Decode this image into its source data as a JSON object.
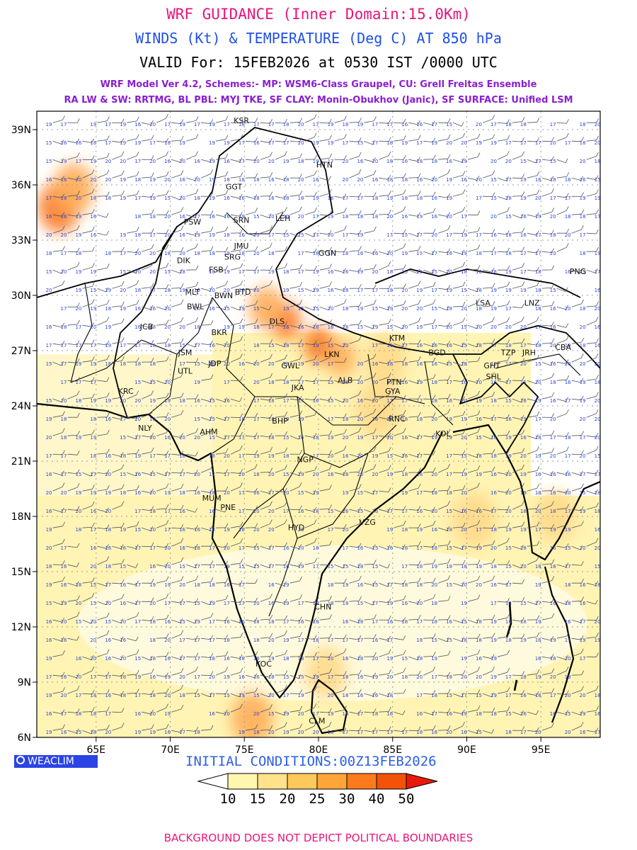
{
  "header": {
    "title": "WRF GUIDANCE (Inner Domain:15.0Km)",
    "subtitle": "WINDS (Kt) & TEMPERATURE (Deg C) AT 850 hPa",
    "valid": "VALID For: 15FEB2026 at 0530 IST /0000 UTC",
    "model_line1": "WRF Model Ver 4.2, Schemes:- MP: WSM6-Class Graupel, CU: Grell Freitas Ensemble",
    "model_line2": "RA LW & SW: RRTMG, BL PBL: MYJ TKE, SF CLAY: Monin-Obukhov (Janic), SF SURFACE: Unified LSM"
  },
  "map": {
    "lon_range": [
      61,
      99
    ],
    "lat_range": [
      6,
      40
    ],
    "lon_ticks": [
      "65E",
      "70E",
      "75E",
      "80E",
      "85E",
      "90E",
      "95E"
    ],
    "lat_ticks": [
      "39N",
      "36N",
      "33N",
      "30N",
      "27N",
      "24N",
      "21N",
      "18N",
      "15N",
      "12N",
      "9N",
      "6N"
    ],
    "grid": "dotted",
    "stations": [
      {
        "code": "KSR",
        "lon": 74.8,
        "lat": 39.5
      },
      {
        "code": "HTN",
        "lon": 80.4,
        "lat": 37.1
      },
      {
        "code": "GGT",
        "lon": 74.3,
        "lat": 35.9
      },
      {
        "code": "LEH",
        "lon": 77.6,
        "lat": 34.2
      },
      {
        "code": "PSW",
        "lon": 71.5,
        "lat": 34.0
      },
      {
        "code": "SRN",
        "lon": 74.8,
        "lat": 34.1
      },
      {
        "code": "JMU",
        "lon": 74.8,
        "lat": 32.7
      },
      {
        "code": "GGN",
        "lon": 80.6,
        "lat": 32.3
      },
      {
        "code": "DIK",
        "lon": 70.9,
        "lat": 31.9
      },
      {
        "code": "SRG",
        "lon": 74.2,
        "lat": 32.1
      },
      {
        "code": "FSB",
        "lon": 73.1,
        "lat": 31.4
      },
      {
        "code": "PNG",
        "lon": 97.5,
        "lat": 31.3
      },
      {
        "code": "MLT",
        "lon": 71.5,
        "lat": 30.2
      },
      {
        "code": "BTD",
        "lon": 74.9,
        "lat": 30.2
      },
      {
        "code": "BWN",
        "lon": 73.6,
        "lat": 30.0
      },
      {
        "code": "LNZ",
        "lon": 94.4,
        "lat": 29.6
      },
      {
        "code": "LSA",
        "lon": 91.1,
        "lat": 29.6
      },
      {
        "code": "BWL",
        "lon": 71.7,
        "lat": 29.4
      },
      {
        "code": "DLS",
        "lon": 77.2,
        "lat": 28.6
      },
      {
        "code": "JCB",
        "lon": 68.4,
        "lat": 28.3
      },
      {
        "code": "BKR",
        "lon": 73.3,
        "lat": 28.0
      },
      {
        "code": "KTM",
        "lon": 85.3,
        "lat": 27.7
      },
      {
        "code": "CBA",
        "lon": 96.5,
        "lat": 27.2
      },
      {
        "code": "BGD",
        "lon": 88.0,
        "lat": 26.9
      },
      {
        "code": "TZP",
        "lon": 92.8,
        "lat": 26.9
      },
      {
        "code": "JRH",
        "lon": 94.2,
        "lat": 26.9
      },
      {
        "code": "JSM",
        "lon": 71.0,
        "lat": 26.9
      },
      {
        "code": "LKN",
        "lon": 80.9,
        "lat": 26.8
      },
      {
        "code": "GHT",
        "lon": 91.7,
        "lat": 26.2
      },
      {
        "code": "JDP",
        "lon": 73.0,
        "lat": 26.3
      },
      {
        "code": "GWL",
        "lon": 78.1,
        "lat": 26.2
      },
      {
        "code": "UTL",
        "lon": 71.0,
        "lat": 25.9
      },
      {
        "code": "SHL",
        "lon": 91.8,
        "lat": 25.6
      },
      {
        "code": "PTN",
        "lon": 85.1,
        "lat": 25.3
      },
      {
        "code": "ALB",
        "lon": 81.8,
        "lat": 25.4
      },
      {
        "code": "JKA",
        "lon": 78.6,
        "lat": 25.0
      },
      {
        "code": "GYA",
        "lon": 85.0,
        "lat": 24.8
      },
      {
        "code": "KRC",
        "lon": 67.0,
        "lat": 24.8
      },
      {
        "code": "RNC",
        "lon": 85.3,
        "lat": 23.3
      },
      {
        "code": "BHP",
        "lon": 77.4,
        "lat": 23.2
      },
      {
        "code": "NLY",
        "lon": 68.3,
        "lat": 22.8
      },
      {
        "code": "AHM",
        "lon": 72.6,
        "lat": 22.6
      },
      {
        "code": "KOL",
        "lon": 88.4,
        "lat": 22.5
      },
      {
        "code": "NGP",
        "lon": 79.1,
        "lat": 21.1
      },
      {
        "code": "MUM",
        "lon": 72.8,
        "lat": 19.0
      },
      {
        "code": "PNE",
        "lon": 73.9,
        "lat": 18.5
      },
      {
        "code": "HYD",
        "lon": 78.5,
        "lat": 17.4
      },
      {
        "code": "VZG",
        "lon": 83.3,
        "lat": 17.7
      },
      {
        "code": "CHN",
        "lon": 80.3,
        "lat": 13.1
      },
      {
        "code": "KOC",
        "lon": 76.3,
        "lat": 10.0
      },
      {
        "code": "CLM",
        "lon": 79.9,
        "lat": 6.9
      }
    ],
    "temp_regions": [
      {
        "lon": 62.5,
        "lat": 34.8,
        "level": 30,
        "r": 1.4
      },
      {
        "lon": 63.5,
        "lat": 35.8,
        "level": 25,
        "r": 1.4
      },
      {
        "lon": 77.8,
        "lat": 28.6,
        "level": 30,
        "r": 1.0
      },
      {
        "lon": 80.0,
        "lat": 27.3,
        "level": 30,
        "r": 1.0
      },
      {
        "lon": 81.5,
        "lat": 26.6,
        "level": 25,
        "r": 1.0
      },
      {
        "lon": 76.5,
        "lat": 29.3,
        "level": 25,
        "r": 1.2
      },
      {
        "lon": 84.5,
        "lat": 26.5,
        "level": 20,
        "r": 1.4
      },
      {
        "lon": 84.0,
        "lat": 23.8,
        "level": 20,
        "r": 1.5
      },
      {
        "lon": 75.5,
        "lat": 7.0,
        "level": 25,
        "r": 1.4
      },
      {
        "lon": 90.5,
        "lat": 17.8,
        "level": 20,
        "r": 1.5
      },
      {
        "lon": 96.0,
        "lat": 18.0,
        "level": 20,
        "r": 1.4
      },
      {
        "lon": 80.5,
        "lat": 9.5,
        "level": 20,
        "r": 1.4
      }
    ],
    "wind_speed_numbers": [
      "15",
      "16",
      "17",
      "18",
      "19",
      "20"
    ]
  },
  "footer": {
    "badge": "WEACLIM",
    "initial": "INITIAL CONDITIONS:00Z13FEB2026",
    "disclaimer": "BACKGROUND DOES NOT DEPICT POLITICAL BOUNDARIES"
  },
  "legend": {
    "ticks": [
      "10",
      "15",
      "20",
      "25",
      "30",
      "40",
      "50"
    ],
    "colors": [
      "#ffffff",
      "#fff6b0",
      "#ffe28a",
      "#ffc85a",
      "#ffa53a",
      "#ff7a1a",
      "#f2520a",
      "#e81a0a"
    ]
  },
  "colors": {
    "level_15": "#fff4b4",
    "level_20": "#ffd98a",
    "level_25": "#ffad5a",
    "level_30": "#f97a26"
  }
}
